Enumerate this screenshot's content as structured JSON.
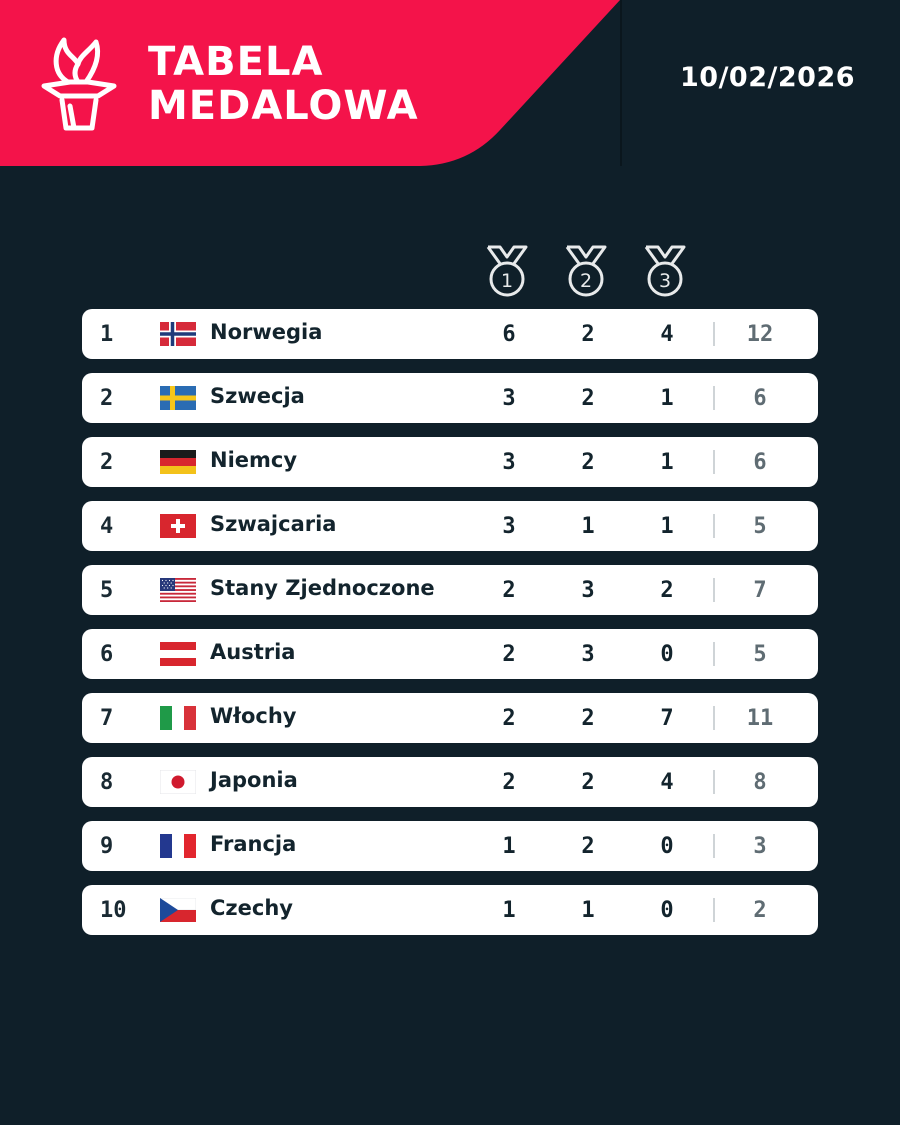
{
  "header": {
    "title_line1": "TABELA",
    "title_line2": "MEDALOWA",
    "date": "10/02/2026",
    "accent_color": "#f4134a",
    "background_color": "#0f1f29"
  },
  "columns": {
    "gold_icon": "medal-1-icon",
    "silver_icon": "medal-2-icon",
    "bronze_icon": "medal-3-icon"
  },
  "rows": [
    {
      "rank": "1",
      "flag": "norway-flag-icon",
      "country": "Norwegia",
      "gold": "6",
      "silver": "2",
      "bronze": "4",
      "total": "12"
    },
    {
      "rank": "2",
      "flag": "sweden-flag-icon",
      "country": "Szwecja",
      "gold": "3",
      "silver": "2",
      "bronze": "1",
      "total": "6"
    },
    {
      "rank": "2",
      "flag": "germany-flag-icon",
      "country": "Niemcy",
      "gold": "3",
      "silver": "2",
      "bronze": "1",
      "total": "6"
    },
    {
      "rank": "4",
      "flag": "switzerland-flag-icon",
      "country": "Szwajcaria",
      "gold": "3",
      "silver": "1",
      "bronze": "1",
      "total": "5"
    },
    {
      "rank": "5",
      "flag": "usa-flag-icon",
      "country": "Stany Zjednoczone",
      "gold": "2",
      "silver": "3",
      "bronze": "2",
      "total": "7"
    },
    {
      "rank": "6",
      "flag": "austria-flag-icon",
      "country": "Austria",
      "gold": "2",
      "silver": "3",
      "bronze": "0",
      "total": "5"
    },
    {
      "rank": "7",
      "flag": "italy-flag-icon",
      "country": "Włochy",
      "gold": "2",
      "silver": "2",
      "bronze": "7",
      "total": "11"
    },
    {
      "rank": "8",
      "flag": "japan-flag-icon",
      "country": "Japonia",
      "gold": "2",
      "silver": "2",
      "bronze": "4",
      "total": "8"
    },
    {
      "rank": "9",
      "flag": "france-flag-icon",
      "country": "Francja",
      "gold": "1",
      "silver": "2",
      "bronze": "0",
      "total": "3"
    },
    {
      "rank": "10",
      "flag": "czechia-flag-icon",
      "country": "Czechy",
      "gold": "1",
      "silver": "1",
      "bronze": "0",
      "total": "2"
    }
  ]
}
